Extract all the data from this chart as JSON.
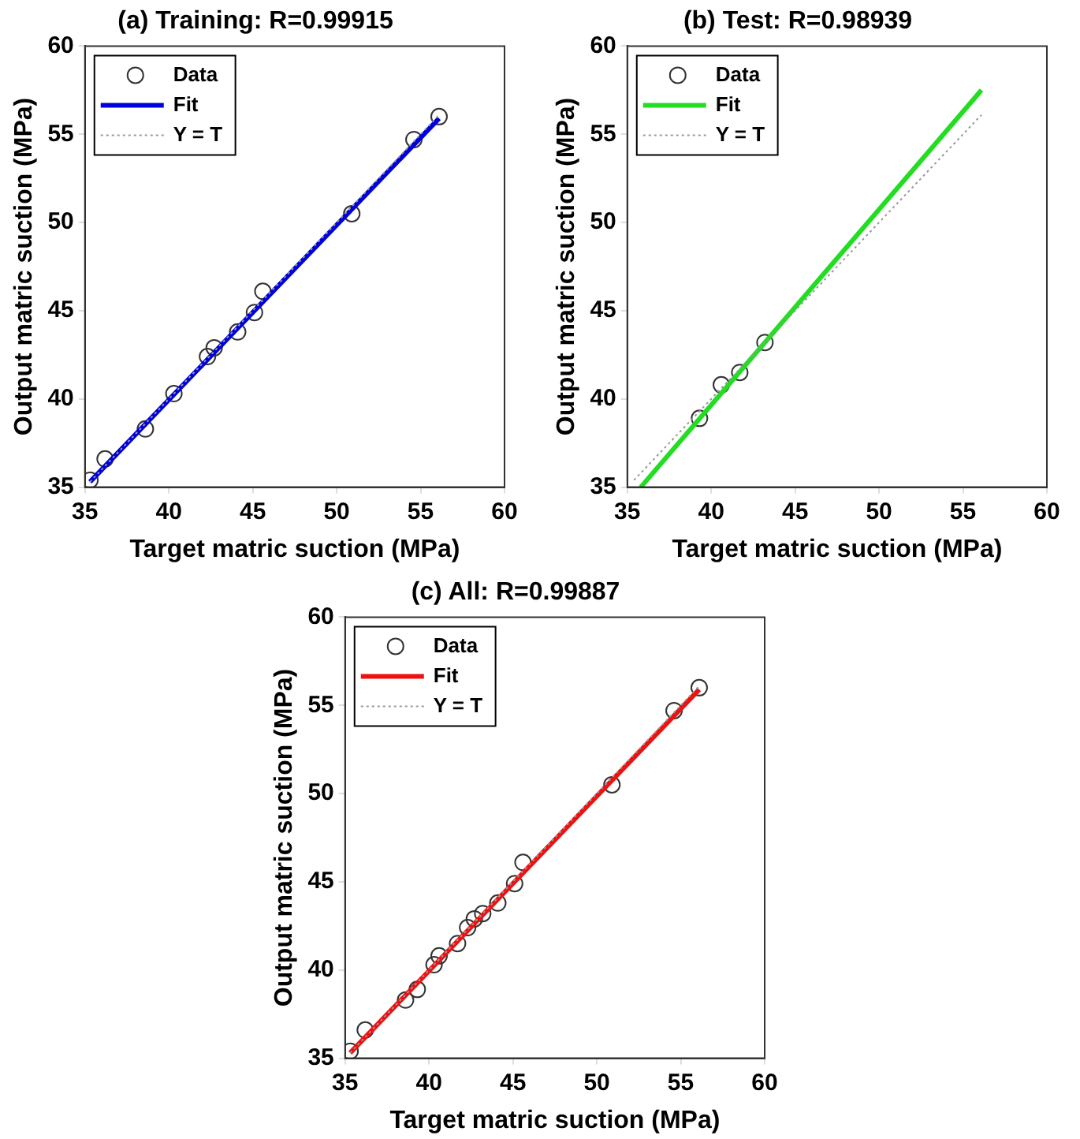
{
  "chart_data": [
    {
      "type": "scatter",
      "title": "(a) Training: R=0.99915",
      "xlabel": "Target matric suction (MPa)",
      "ylabel": "Output matric suction (MPa)",
      "xlim": [
        35,
        60
      ],
      "ylim": [
        35,
        60
      ],
      "xticks": [
        35,
        40,
        45,
        50,
        55,
        60
      ],
      "yticks": [
        35,
        40,
        45,
        50,
        55,
        60
      ],
      "legend": "top left",
      "grid": false,
      "series": [
        {
          "name": "Data",
          "type": "scatter",
          "marker": "circle",
          "color": "#333333",
          "x": [
            35.3,
            36.2,
            38.6,
            40.3,
            42.3,
            42.7,
            44.1,
            45.1,
            45.6,
            50.9,
            54.6,
            56.1
          ],
          "values": [
            35.4,
            36.6,
            38.3,
            40.3,
            42.4,
            42.9,
            43.8,
            44.9,
            46.1,
            50.5,
            54.7,
            56.0
          ]
        },
        {
          "name": "Fit",
          "type": "line",
          "color": "#0000dd",
          "x": [
            35.3,
            56.1
          ],
          "values": [
            35.3,
            55.9
          ]
        },
        {
          "name": "Y = T",
          "type": "line",
          "color": "#999999",
          "line_style": "dotted",
          "x": [
            35.3,
            56.1
          ],
          "values": [
            35.3,
            56.1
          ]
        }
      ]
    },
    {
      "type": "scatter",
      "title": "(b) Test: R=0.98939",
      "xlabel": "Target matric suction (MPa)",
      "ylabel": "Output matric suction (MPa)",
      "xlim": [
        35,
        60
      ],
      "ylim": [
        35,
        60
      ],
      "xticks": [
        35,
        40,
        45,
        50,
        55,
        60
      ],
      "yticks": [
        35,
        40,
        45,
        50,
        55,
        60
      ],
      "legend": "top left",
      "grid": false,
      "series": [
        {
          "name": "Data",
          "type": "scatter",
          "marker": "circle",
          "color": "#333333",
          "x": [
            39.3,
            40.6,
            41.7,
            43.2
          ],
          "values": [
            38.9,
            40.8,
            41.5,
            43.2
          ]
        },
        {
          "name": "Fit",
          "type": "line",
          "color": "#22dd22",
          "x": [
            35.8,
            56.1
          ],
          "values": [
            35.0,
            57.5
          ]
        },
        {
          "name": "Y = T",
          "type": "line",
          "color": "#999999",
          "line_style": "dotted",
          "x": [
            35.4,
            56.1
          ],
          "values": [
            35.4,
            56.1
          ]
        }
      ]
    },
    {
      "type": "scatter",
      "title": "(c) All: R=0.99887",
      "xlabel": "Target matric suction (MPa)",
      "ylabel": "Output matric suction (MPa)",
      "xlim": [
        35,
        60
      ],
      "ylim": [
        35,
        60
      ],
      "xticks": [
        35,
        40,
        45,
        50,
        55,
        60
      ],
      "yticks": [
        35,
        40,
        45,
        50,
        55,
        60
      ],
      "legend": "top left",
      "grid": false,
      "series": [
        {
          "name": "Data",
          "type": "scatter",
          "marker": "circle",
          "color": "#333333",
          "x": [
            35.3,
            36.2,
            38.6,
            39.3,
            40.3,
            40.6,
            41.7,
            42.3,
            42.7,
            43.2,
            44.1,
            45.1,
            45.6,
            50.9,
            54.6,
            56.1
          ],
          "values": [
            35.4,
            36.6,
            38.3,
            38.9,
            40.3,
            40.8,
            41.5,
            42.4,
            42.9,
            43.2,
            43.8,
            44.9,
            46.1,
            50.5,
            54.7,
            56.0
          ]
        },
        {
          "name": "Fit",
          "type": "line",
          "color": "#ee1111",
          "x": [
            35.3,
            56.1
          ],
          "values": [
            35.3,
            55.9
          ]
        },
        {
          "name": "Y = T",
          "type": "line",
          "color": "#999999",
          "line_style": "dotted",
          "x": [
            35.3,
            56.1
          ],
          "values": [
            35.3,
            56.1
          ]
        }
      ]
    }
  ]
}
